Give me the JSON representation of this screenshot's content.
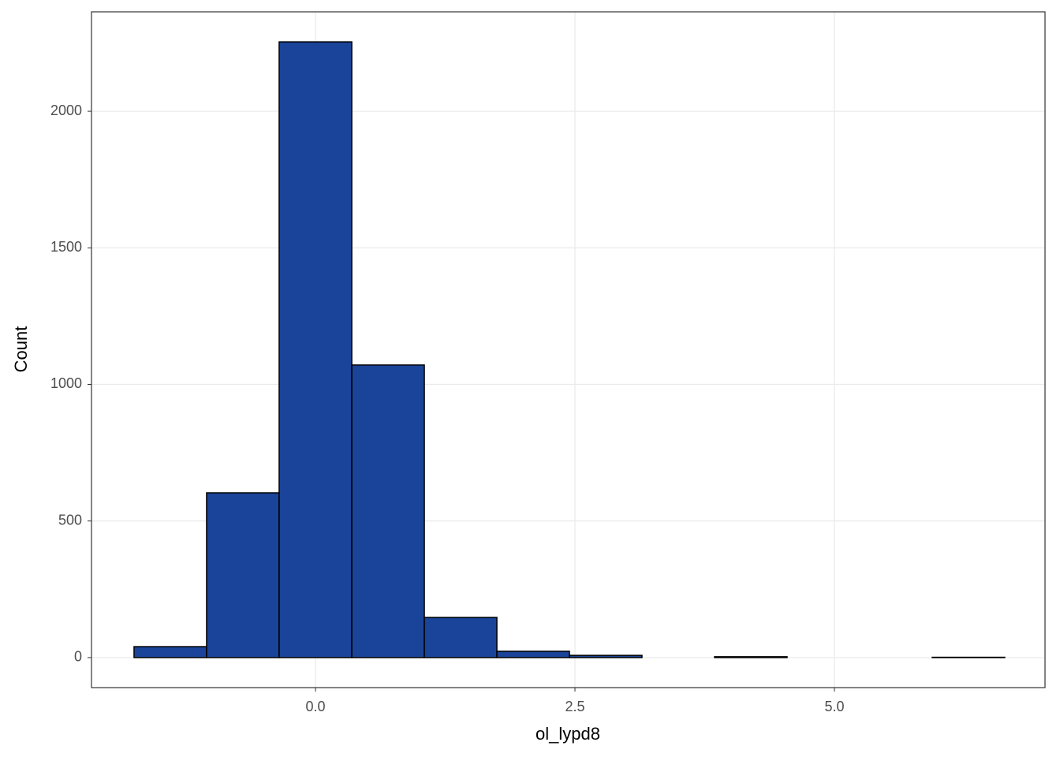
{
  "chart_data": {
    "type": "histogram",
    "x_label": "ol_lypd8",
    "y_label": "Count",
    "bins": [
      -1.748,
      -1.049,
      -0.35,
      0.35,
      1.049,
      1.748,
      2.447,
      3.146,
      3.845,
      4.544,
      5.243,
      5.942,
      6.641
    ],
    "values": [
      40,
      603,
      2254,
      1071,
      147,
      23,
      8,
      0,
      3,
      0,
      0,
      1
    ],
    "color": "#1a4499",
    "xlim": [
      -2.158,
      7.029
    ],
    "ylim": [
      -110,
      2364
    ],
    "xticks": [
      {
        "value": 0,
        "label": "0.0"
      },
      {
        "value": 2.5,
        "label": "2.5"
      },
      {
        "value": 5,
        "label": "5.0"
      }
    ],
    "yticks": [
      0,
      500,
      1000,
      1500,
      2000
    ],
    "grid": true
  }
}
